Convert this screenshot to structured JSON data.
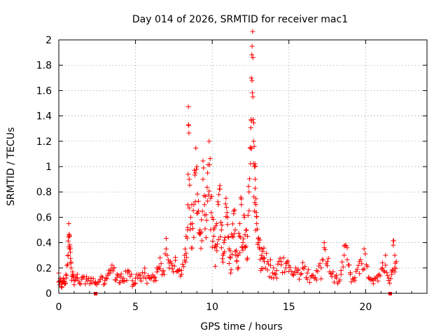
{
  "chart_data": {
    "type": "scatter",
    "title": "Day 014 of 2026, SRMTID for receiver mac1",
    "xlabel": "GPS time / hours",
    "ylabel": "SRMTID / TECUs",
    "xlim": [
      0,
      24
    ],
    "ylim": [
      0,
      2
    ],
    "xticks": [
      0,
      5,
      10,
      15,
      20
    ],
    "xtick_labels": [
      "0",
      "5",
      "10",
      "15",
      "20"
    ],
    "yticks": [
      0,
      0.2,
      0.4,
      0.6,
      0.8,
      1.0,
      1.2,
      1.4,
      1.6,
      1.8,
      2.0
    ],
    "ytick_labels": [
      "0",
      "0.2",
      "0.4",
      "0.6",
      "0.8",
      "1",
      "1.2",
      "1.4",
      "1.6",
      "1.8",
      "2"
    ],
    "grid": true,
    "marker": "+",
    "color": "#ff0000",
    "series": [
      {
        "name": "SRMTID",
        "x": [
          0.0,
          0.1,
          0.2,
          0.3,
          0.4,
          0.5,
          0.6,
          0.65,
          0.7,
          0.75,
          0.8,
          0.9,
          1.0,
          1.2,
          1.5,
          1.8,
          2.1,
          2.4,
          2.7,
          3.0,
          3.2,
          3.4,
          3.6,
          3.8,
          4.0,
          4.2,
          4.5,
          4.8,
          5.0,
          5.3,
          5.6,
          5.9,
          6.2,
          6.4,
          6.6,
          6.8,
          7.0,
          7.2,
          7.4,
          7.6,
          7.8,
          8.0,
          8.2,
          8.3,
          8.4,
          8.45,
          8.5,
          8.6,
          8.7,
          8.8,
          8.9,
          9.0,
          9.1,
          9.2,
          9.3,
          9.4,
          9.5,
          9.6,
          9.7,
          9.8,
          9.9,
          10.0,
          10.1,
          10.2,
          10.3,
          10.4,
          10.5,
          10.6,
          10.7,
          10.8,
          10.9,
          11.0,
          11.1,
          11.2,
          11.3,
          11.4,
          11.5,
          11.6,
          11.7,
          11.8,
          11.9,
          12.0,
          12.1,
          12.2,
          12.3,
          12.4,
          12.5,
          12.55,
          12.6,
          12.65,
          12.7,
          12.75,
          12.8,
          12.85,
          12.9,
          13.0,
          13.1,
          13.2,
          13.3,
          13.4,
          13.6,
          13.8,
          14.0,
          14.2,
          14.5,
          14.8,
          15.0,
          15.3,
          15.6,
          15.9,
          16.2,
          16.5,
          16.8,
          17.1,
          17.3,
          17.5,
          17.8,
          18.1,
          18.4,
          18.6,
          18.8,
          19.0,
          19.3,
          19.6,
          19.9,
          20.2,
          20.5,
          20.8,
          21.1,
          21.3,
          21.5,
          21.7,
          21.8,
          21.9,
          22.0
        ],
        "y": [
          0.16,
          0.1,
          0.08,
          0.12,
          0.09,
          0.14,
          0.3,
          0.55,
          0.45,
          0.35,
          0.2,
          0.15,
          0.1,
          0.12,
          0.11,
          0.13,
          0.1,
          0.09,
          0.11,
          0.1,
          0.14,
          0.19,
          0.2,
          0.15,
          0.13,
          0.12,
          0.18,
          0.1,
          0.12,
          0.14,
          0.16,
          0.12,
          0.13,
          0.2,
          0.28,
          0.18,
          0.35,
          0.2,
          0.22,
          0.26,
          0.18,
          0.15,
          0.3,
          0.45,
          0.5,
          1.33,
          0.9,
          0.6,
          0.55,
          0.7,
          0.95,
          1.0,
          0.65,
          0.5,
          0.58,
          0.9,
          0.7,
          0.62,
          0.95,
          1.2,
          0.75,
          0.6,
          0.45,
          0.38,
          0.55,
          0.7,
          0.85,
          0.5,
          0.3,
          0.42,
          0.75,
          0.6,
          0.35,
          0.28,
          0.45,
          0.65,
          0.5,
          0.25,
          0.3,
          0.55,
          0.7,
          0.4,
          0.6,
          0.5,
          0.45,
          0.8,
          1.15,
          1.7,
          1.95,
          1.55,
          1.2,
          1.0,
          0.9,
          0.7,
          0.55,
          0.4,
          0.35,
          0.3,
          0.33,
          0.28,
          0.25,
          0.22,
          0.2,
          0.18,
          0.25,
          0.2,
          0.22,
          0.15,
          0.18,
          0.2,
          0.16,
          0.14,
          0.18,
          0.2,
          0.4,
          0.25,
          0.15,
          0.12,
          0.18,
          0.3,
          0.36,
          0.15,
          0.1,
          0.25,
          0.35,
          0.12,
          0.1,
          0.14,
          0.2,
          0.3,
          0.12,
          0.15,
          0.38,
          0.3,
          0.25
        ],
        "bottom_points": [
          2.4,
          21.6
        ]
      }
    ]
  }
}
